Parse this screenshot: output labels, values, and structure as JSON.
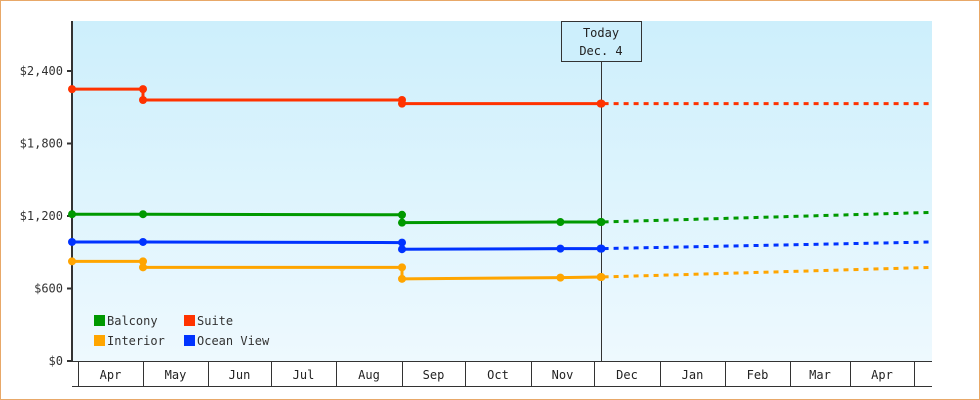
{
  "chart_data": {
    "type": "line",
    "title": "",
    "xlabel": "",
    "ylabel": "",
    "ylim": [
      0,
      2800
    ],
    "yticks": [
      {
        "value": 0,
        "label": "$0"
      },
      {
        "value": 600,
        "label": "$600"
      },
      {
        "value": 1200,
        "label": "$1,200"
      },
      {
        "value": 1800,
        "label": "$1,800"
      },
      {
        "value": 2400,
        "label": "$2,400"
      }
    ],
    "months": [
      "Apr",
      "May",
      "Jun",
      "Jul",
      "Aug",
      "Sep",
      "Oct",
      "Nov",
      "Dec",
      "Jan",
      "Feb",
      "Mar",
      "Apr"
    ],
    "today": {
      "label_line1": "Today",
      "label_line2": "Dec. 4"
    },
    "legend_position": "bottom-left",
    "grid": false,
    "series": [
      {
        "name": "Suite",
        "color": "#ff3300",
        "historical": [
          [
            "Apr 1",
            2250
          ],
          [
            "May 1",
            2250
          ],
          [
            "May 1",
            2160
          ],
          [
            "Sep 1",
            2160
          ],
          [
            "Sep 1",
            2130
          ],
          [
            "Dec 4",
            2130
          ]
        ],
        "forecast": [
          [
            "Dec 4",
            2130
          ],
          [
            "Apr 30",
            2130
          ]
        ]
      },
      {
        "name": "Balcony",
        "color": "#009900",
        "historical": [
          [
            "Apr 1",
            1215
          ],
          [
            "May 1",
            1215
          ],
          [
            "Sep 1",
            1210
          ],
          [
            "Sep 1",
            1145
          ],
          [
            "Nov 15",
            1150
          ],
          [
            "Dec 4",
            1150
          ]
        ],
        "forecast": [
          [
            "Dec 4",
            1150
          ],
          [
            "Apr 30",
            1230
          ]
        ]
      },
      {
        "name": "Ocean View",
        "color": "#0033ff",
        "historical": [
          [
            "Apr 1",
            985
          ],
          [
            "May 1",
            985
          ],
          [
            "Sep 1",
            980
          ],
          [
            "Sep 1",
            925
          ],
          [
            "Nov 15",
            930
          ],
          [
            "Dec 4",
            930
          ]
        ],
        "forecast": [
          [
            "Dec 4",
            930
          ],
          [
            "Apr 30",
            985
          ]
        ]
      },
      {
        "name": "Interior",
        "color": "#ffa500",
        "historical": [
          [
            "Apr 1",
            825
          ],
          [
            "May 1",
            825
          ],
          [
            "May 1",
            775
          ],
          [
            "Sep 1",
            775
          ],
          [
            "Sep 1",
            680
          ],
          [
            "Nov 15",
            690
          ],
          [
            "Dec 4",
            695
          ]
        ],
        "forecast": [
          [
            "Dec 4",
            695
          ],
          [
            "Apr 30",
            775
          ]
        ]
      }
    ]
  },
  "legend": [
    {
      "label": "Balcony",
      "color": "#009900"
    },
    {
      "label": "Suite",
      "color": "#ff3300"
    },
    {
      "label": "Interior",
      "color": "#ffa500"
    },
    {
      "label": "Ocean View",
      "color": "#0033ff"
    }
  ]
}
